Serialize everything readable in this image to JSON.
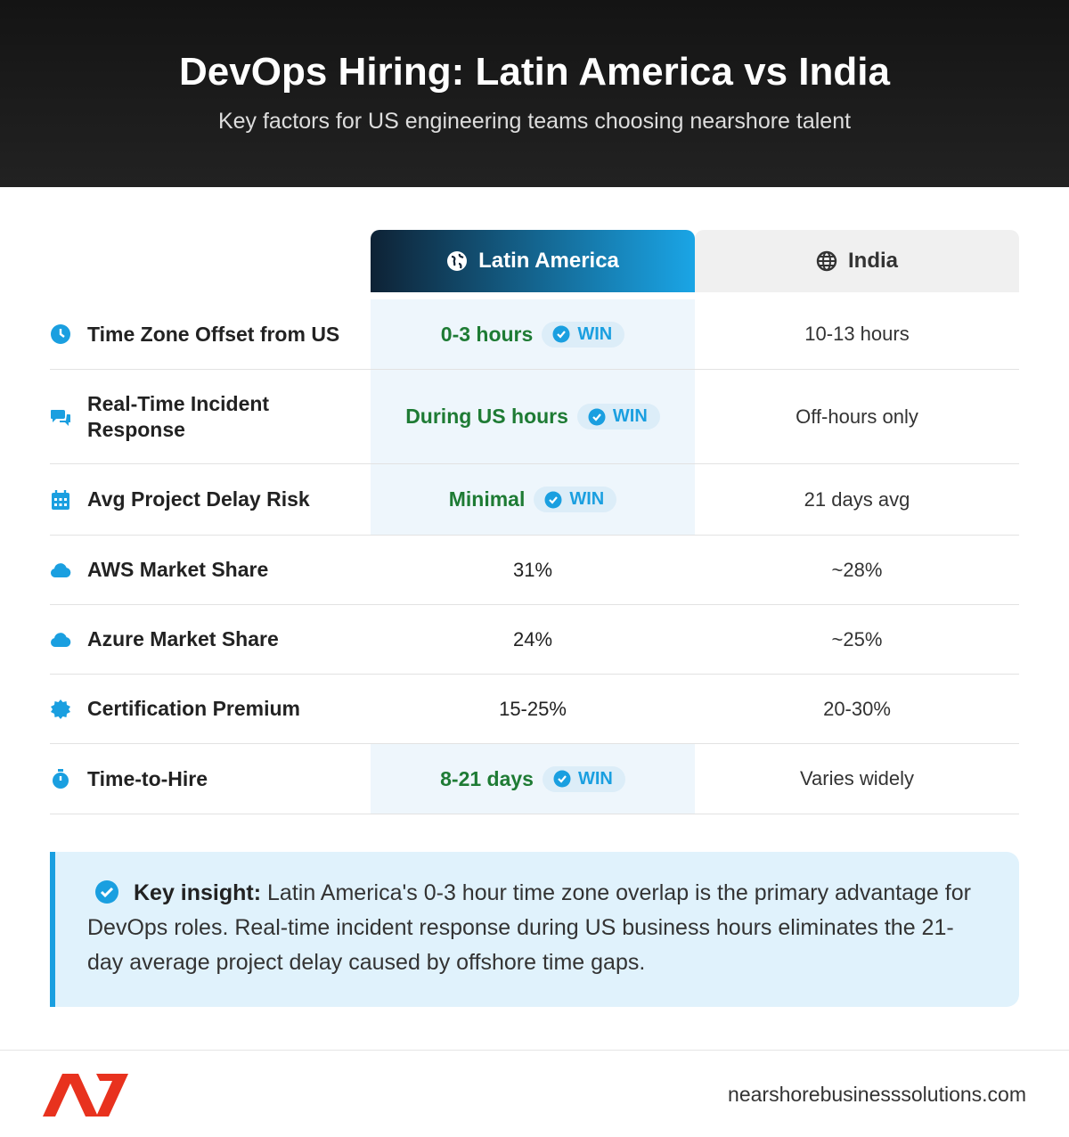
{
  "header": {
    "title": "DevOps Hiring: Latin America vs India",
    "subtitle": "Key factors for US engineering teams choosing nearshore talent"
  },
  "table": {
    "columns": [
      "Latin America",
      "India"
    ],
    "rows": [
      {
        "label": "Time Zone Offset from US",
        "latam": "0-3 hours",
        "badge": "WIN",
        "india": "10-13 hours"
      },
      {
        "label": "Real-Time Incident Response",
        "latam": "During US hours",
        "badge": "WIN",
        "india": "Off-hours only"
      },
      {
        "label": "Avg Project Delay Risk",
        "latam": "Minimal",
        "badge": "WIN",
        "india": "21 days avg"
      },
      {
        "label": "AWS Market Share",
        "latam": "31%",
        "india": "~28%"
      },
      {
        "label": "Azure Market Share",
        "latam": "24%",
        "india": "~25%"
      },
      {
        "label": "Certification Premium",
        "latam": "15-25%",
        "india": "20-30%"
      },
      {
        "label": "Time-to-Hire",
        "latam": "8-21 days",
        "badge": "WIN",
        "india": "Varies widely"
      }
    ]
  },
  "insight": {
    "label": "Key insight:",
    "text": "Latin America's 0-3 hour time zone overlap is the primary advantage for DevOps roles. Real-time incident response during US business hours eliminates the 21-day average project delay caused by offshore time gaps."
  },
  "footer": {
    "url": "nearshorebusinesssolutions.com"
  }
}
